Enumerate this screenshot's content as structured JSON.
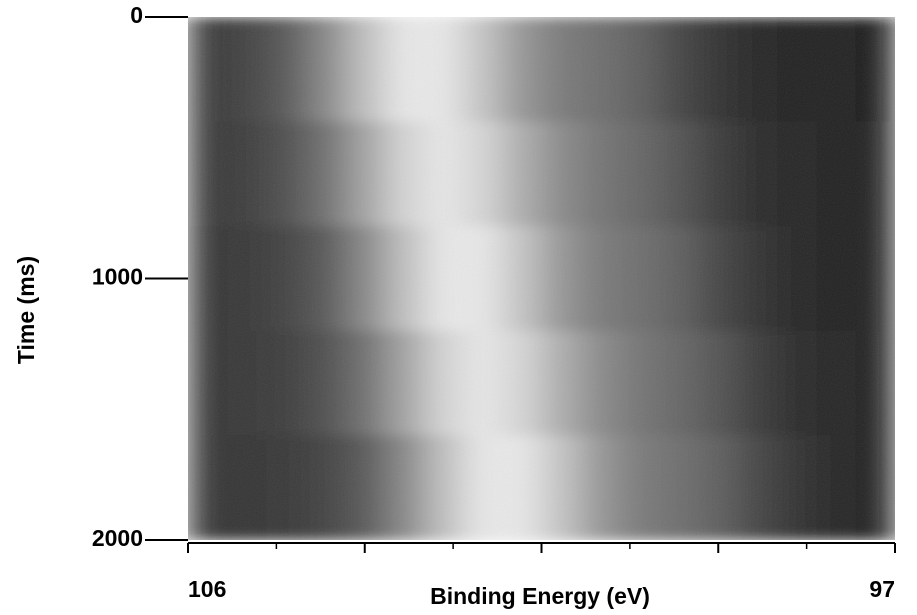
{
  "chart_data": {
    "type": "heatmap",
    "colormap": "gray",
    "x_label": "Binding Energy (eV)",
    "y_label": "Time (ms)",
    "xlim": [
      106,
      97
    ],
    "ylim": [
      0,
      2000
    ],
    "xticks": [
      106,
      97
    ],
    "xticks_unlabeled": [
      103.75,
      101.5,
      99.25
    ],
    "xminorticks": [
      104.875,
      102.625,
      100.375,
      98.125
    ],
    "yticks": [
      0,
      1000,
      2000
    ],
    "zlim": [
      0,
      1
    ],
    "xbins": [
      106,
      105.5,
      105,
      104.5,
      104,
      103.5,
      103,
      102.5,
      102,
      101.5,
      101,
      100.5,
      100,
      99.5,
      99,
      98.5,
      98,
      97.5,
      97
    ],
    "ybins": [
      0,
      400,
      800,
      1200,
      1600,
      2000
    ],
    "z": [
      [
        0.22,
        0.26,
        0.35,
        0.53,
        0.75,
        0.91,
        0.91,
        0.77,
        0.59,
        0.48,
        0.43,
        0.37,
        0.27,
        0.19,
        0.15,
        0.14,
        0.13,
        0.12
      ],
      [
        0.22,
        0.24,
        0.31,
        0.44,
        0.64,
        0.83,
        0.91,
        0.84,
        0.68,
        0.54,
        0.46,
        0.4,
        0.32,
        0.23,
        0.17,
        0.15,
        0.14,
        0.13
      ],
      [
        0.21,
        0.22,
        0.26,
        0.35,
        0.53,
        0.75,
        0.91,
        0.91,
        0.77,
        0.59,
        0.48,
        0.43,
        0.37,
        0.27,
        0.19,
        0.15,
        0.14,
        0.13
      ],
      [
        0.21,
        0.22,
        0.24,
        0.31,
        0.44,
        0.64,
        0.83,
        0.91,
        0.84,
        0.68,
        0.54,
        0.46,
        0.4,
        0.32,
        0.23,
        0.17,
        0.15,
        0.14
      ],
      [
        0.21,
        0.21,
        0.22,
        0.26,
        0.35,
        0.53,
        0.75,
        0.91,
        0.91,
        0.77,
        0.59,
        0.48,
        0.43,
        0.37,
        0.27,
        0.19,
        0.15,
        0.14
      ]
    ]
  }
}
